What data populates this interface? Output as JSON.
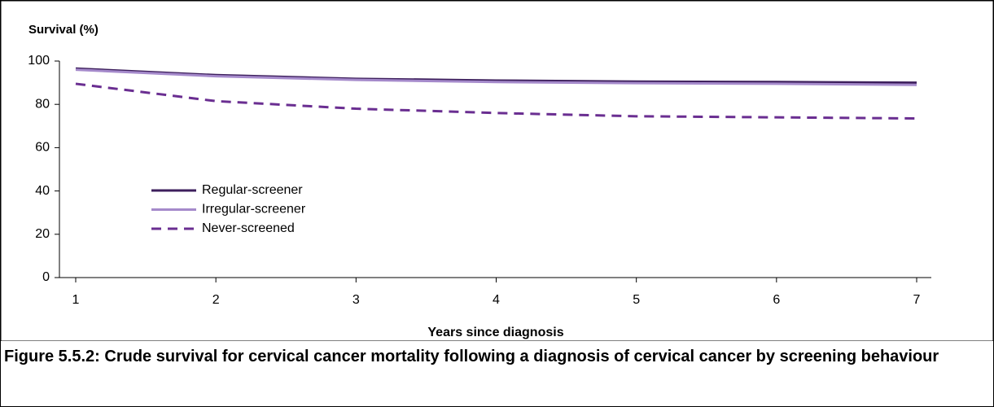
{
  "chart_data": {
    "type": "line",
    "caption": "Figure 5.5.2: Crude survival for cervical cancer mortality following a diagnosis of cervical cancer by screening behaviour",
    "ylabel": "Survival (%)",
    "xlabel": "Years since diagnosis",
    "x": [
      1,
      2,
      3,
      4,
      5,
      6,
      7
    ],
    "xlim": [
      1,
      7
    ],
    "xticks": [
      1,
      2,
      3,
      4,
      5,
      6,
      7
    ],
    "ylim": [
      0,
      100
    ],
    "yticks": [
      0,
      20,
      40,
      60,
      80,
      100
    ],
    "legend": "lower left",
    "series": [
      {
        "name": "Regular-screener",
        "color": "#3d1f5c",
        "dash": "solid",
        "values": [
          96.5,
          93.5,
          91.8,
          91,
          90.5,
          90.3,
          90
        ]
      },
      {
        "name": "Irregular-screener",
        "color": "#a58acb",
        "dash": "solid",
        "values": [
          96,
          93,
          91.3,
          90.3,
          89.8,
          89.5,
          89
        ]
      },
      {
        "name": "Never-screened",
        "color": "#6a2e91",
        "dash": "dashed",
        "values": [
          89.5,
          81.5,
          78,
          76,
          74.5,
          74,
          73.5
        ]
      }
    ]
  }
}
